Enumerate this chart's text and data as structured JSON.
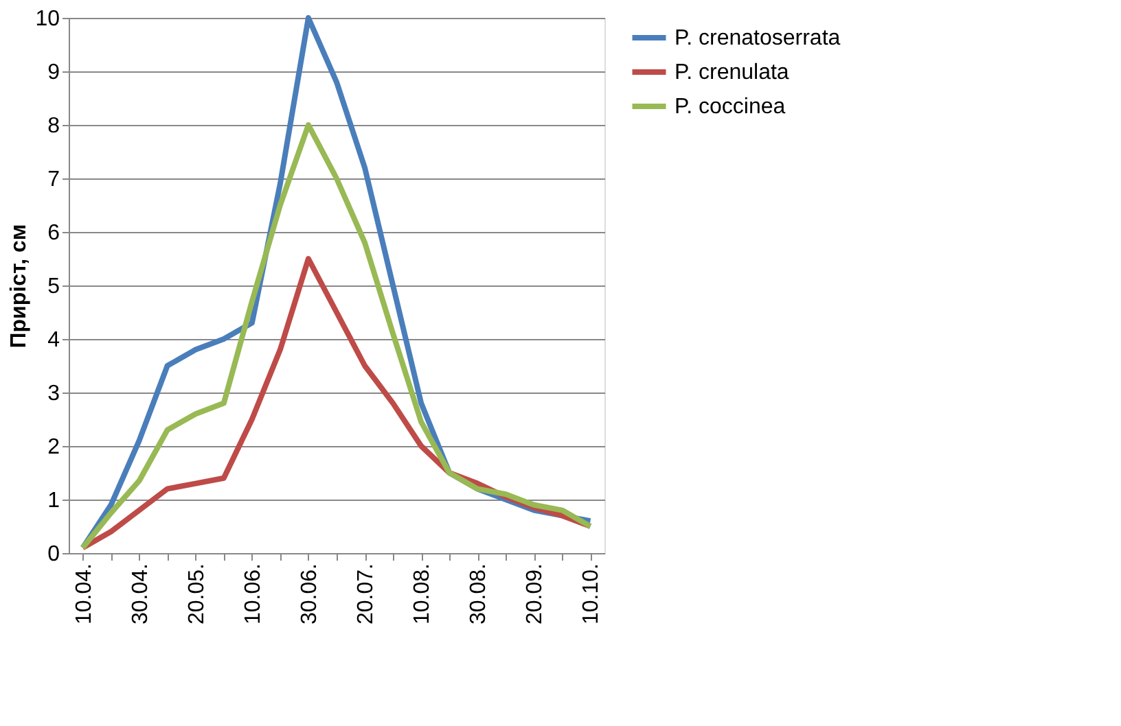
{
  "chart_data": {
    "type": "line",
    "ylabel": "Приріст, см",
    "categories": [
      "10.04.",
      null,
      "30.04.",
      null,
      "20.05.",
      null,
      "10.06.",
      null,
      "30.06.",
      null,
      "20.07.",
      null,
      "10.08.",
      null,
      "30.08.",
      null,
      "20.09.",
      null,
      "10.10."
    ],
    "series": [
      {
        "name": "P. crenatoserrata",
        "color": "#4a7ebb",
        "values": [
          0.1,
          0.9,
          2.1,
          3.5,
          3.8,
          4.0,
          4.3,
          6.9,
          10,
          8.8,
          7.2,
          5.0,
          2.8,
          1.5,
          1.2,
          1.0,
          0.8,
          0.7,
          0.6
        ]
      },
      {
        "name": "P. crenulata",
        "color": "#be4b48",
        "values": [
          0.1,
          0.4,
          0.8,
          1.2,
          1.3,
          1.4,
          2.5,
          3.8,
          5.5,
          4.5,
          3.5,
          2.8,
          2.0,
          1.5,
          1.3,
          1.05,
          0.85,
          0.7,
          0.5
        ]
      },
      {
        "name": "P. coccinea",
        "color": "#98b954",
        "values": [
          0.1,
          0.75,
          1.35,
          2.3,
          2.6,
          2.8,
          4.7,
          6.5,
          8.0,
          7.0,
          5.8,
          4.1,
          2.45,
          1.5,
          1.2,
          1.1,
          0.9,
          0.8,
          0.5
        ]
      }
    ],
    "ylim": [
      0,
      10
    ],
    "yticks": [
      0,
      1,
      2,
      3,
      4,
      5,
      6,
      7,
      8,
      9,
      10
    ],
    "grid": "y",
    "legend": "right",
    "marker": "none",
    "line_style": "solid"
  }
}
